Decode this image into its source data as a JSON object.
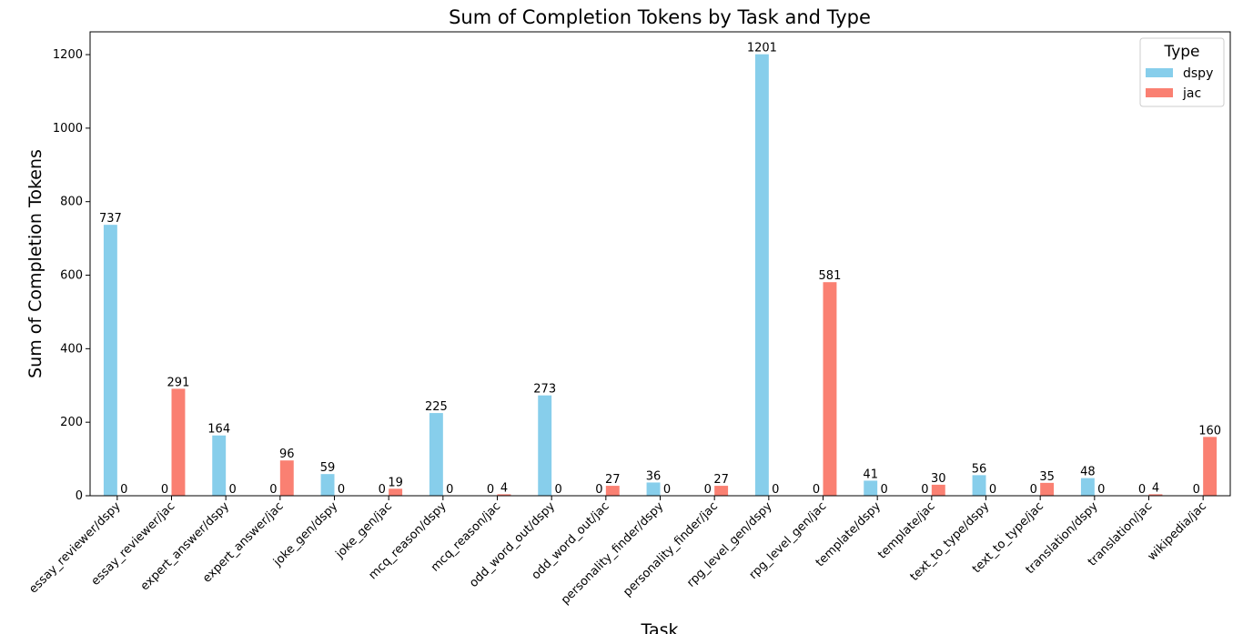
{
  "chart_data": {
    "type": "bar",
    "title": "Sum of Completion Tokens by Task and Type",
    "xlabel": "Task",
    "ylabel": "Sum of Completion Tokens",
    "ylim": [
      0,
      1262
    ],
    "yticks": [
      0,
      200,
      400,
      600,
      800,
      1000,
      1200
    ],
    "categories": [
      "essay_reviewer/dspy",
      "essay_reviewer/jac",
      "expert_answer/dspy",
      "expert_answer/jac",
      "joke_gen/dspy",
      "joke_gen/jac",
      "mcq_reason/dspy",
      "mcq_reason/jac",
      "odd_word_out/dspy",
      "odd_word_out/jac",
      "personality_finder/dspy",
      "personality_finder/jac",
      "rpg_level_gen/dspy",
      "rpg_level_gen/jac",
      "template/dspy",
      "template/jac",
      "text_to_type/dspy",
      "text_to_type/jac",
      "translation/dspy",
      "translation/jac",
      "wikipedia/jac"
    ],
    "series": [
      {
        "name": "dspy",
        "color": "#87ceeb",
        "values": [
          737,
          0,
          164,
          0,
          59,
          0,
          225,
          0,
          273,
          0,
          36,
          0,
          1201,
          0,
          41,
          0,
          56,
          0,
          48,
          0,
          0
        ]
      },
      {
        "name": "jac",
        "color": "#fa8072",
        "values": [
          0,
          291,
          0,
          96,
          0,
          19,
          0,
          4,
          0,
          27,
          0,
          27,
          0,
          581,
          0,
          30,
          0,
          35,
          0,
          4,
          160
        ]
      }
    ],
    "legend": {
      "title": "Type",
      "position": "top-right"
    },
    "grid": false
  }
}
